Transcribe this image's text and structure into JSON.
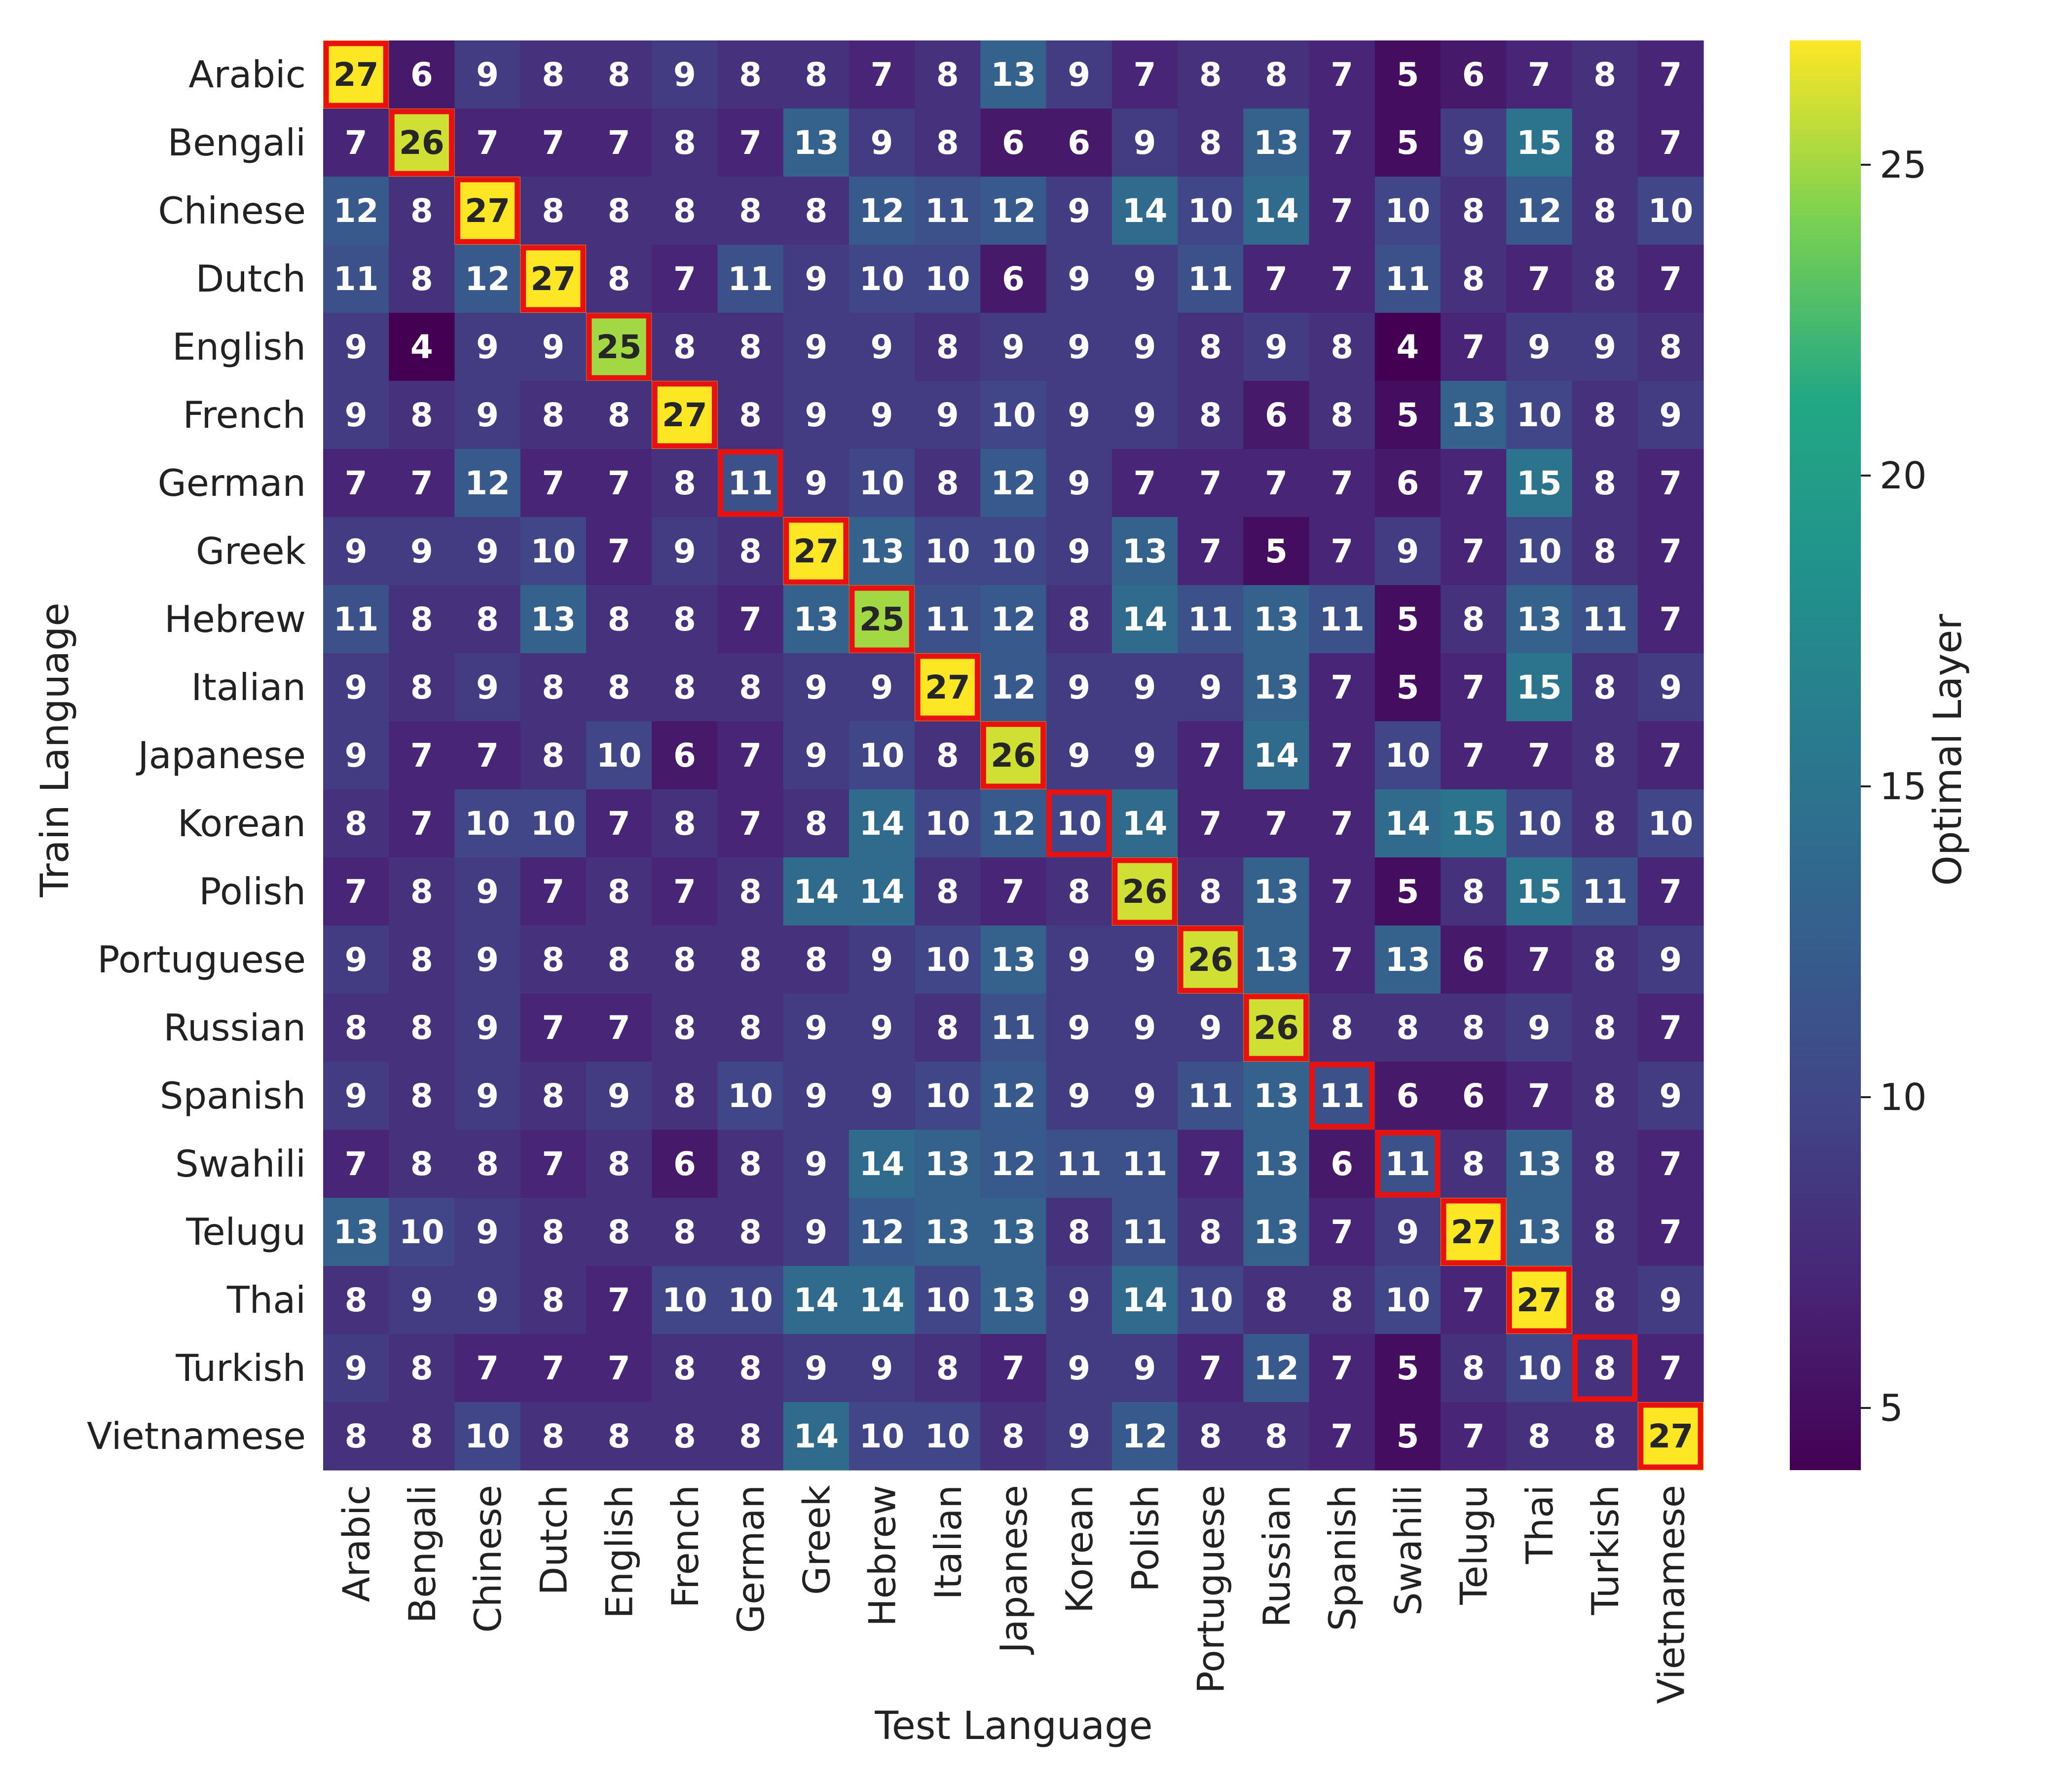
{
  "chart_data": {
    "type": "heatmap",
    "title": "",
    "xlabel": "Test Language",
    "ylabel": "Train Language",
    "colorbar_label": "Optimal Layer",
    "colormap": "viridis",
    "vmin": 4,
    "vmax": 27,
    "colorbar_ticks": [
      5,
      10,
      15,
      20,
      25
    ],
    "highlight": "diagonal",
    "highlight_color": "#e8110f",
    "x_categories": [
      "Arabic",
      "Bengali",
      "Chinese",
      "Dutch",
      "English",
      "French",
      "German",
      "Greek",
      "Hebrew",
      "Italian",
      "Japanese",
      "Korean",
      "Polish",
      "Portuguese",
      "Russian",
      "Spanish",
      "Swahili",
      "Telugu",
      "Thai",
      "Turkish",
      "Vietnamese"
    ],
    "y_categories": [
      "Arabic",
      "Bengali",
      "Chinese",
      "Dutch",
      "English",
      "French",
      "German",
      "Greek",
      "Hebrew",
      "Italian",
      "Japanese",
      "Korean",
      "Polish",
      "Portuguese",
      "Russian",
      "Spanish",
      "Swahili",
      "Telugu",
      "Thai",
      "Turkish",
      "Vietnamese"
    ],
    "values": [
      [
        27,
        6,
        9,
        8,
        8,
        9,
        8,
        8,
        7,
        8,
        13,
        9,
        7,
        8,
        8,
        7,
        5,
        6,
        7,
        8,
        7
      ],
      [
        7,
        26,
        7,
        7,
        7,
        8,
        7,
        13,
        9,
        8,
        6,
        6,
        9,
        8,
        13,
        7,
        5,
        9,
        15,
        8,
        7
      ],
      [
        12,
        8,
        27,
        8,
        8,
        8,
        8,
        8,
        12,
        11,
        12,
        9,
        14,
        10,
        14,
        7,
        10,
        8,
        12,
        8,
        10
      ],
      [
        11,
        8,
        12,
        27,
        8,
        7,
        11,
        9,
        10,
        10,
        6,
        9,
        9,
        11,
        7,
        7,
        11,
        8,
        7,
        8,
        7
      ],
      [
        9,
        4,
        9,
        9,
        25,
        8,
        8,
        9,
        9,
        8,
        9,
        9,
        9,
        8,
        9,
        8,
        4,
        7,
        9,
        9,
        8
      ],
      [
        9,
        8,
        9,
        8,
        8,
        27,
        8,
        9,
        9,
        9,
        10,
        9,
        9,
        8,
        6,
        8,
        5,
        13,
        10,
        8,
        9
      ],
      [
        7,
        7,
        12,
        7,
        7,
        8,
        11,
        9,
        10,
        8,
        12,
        9,
        7,
        7,
        7,
        7,
        6,
        7,
        15,
        8,
        7
      ],
      [
        9,
        9,
        9,
        10,
        7,
        9,
        8,
        27,
        13,
        10,
        10,
        9,
        13,
        7,
        5,
        7,
        9,
        7,
        10,
        8,
        7
      ],
      [
        11,
        8,
        8,
        13,
        8,
        8,
        7,
        13,
        25,
        11,
        12,
        8,
        14,
        11,
        13,
        11,
        5,
        8,
        13,
        11,
        7
      ],
      [
        9,
        8,
        9,
        8,
        8,
        8,
        8,
        9,
        9,
        27,
        12,
        9,
        9,
        9,
        13,
        7,
        5,
        7,
        15,
        8,
        9
      ],
      [
        9,
        7,
        7,
        8,
        10,
        6,
        7,
        9,
        10,
        8,
        26,
        9,
        9,
        7,
        14,
        7,
        10,
        7,
        7,
        8,
        7
      ],
      [
        8,
        7,
        10,
        10,
        7,
        8,
        7,
        8,
        14,
        10,
        12,
        10,
        14,
        7,
        7,
        7,
        14,
        15,
        10,
        8,
        10
      ],
      [
        7,
        8,
        9,
        7,
        8,
        7,
        8,
        14,
        14,
        8,
        7,
        8,
        26,
        8,
        13,
        7,
        5,
        8,
        15,
        11,
        7
      ],
      [
        9,
        8,
        9,
        8,
        8,
        8,
        8,
        8,
        9,
        10,
        13,
        9,
        9,
        26,
        13,
        7,
        13,
        6,
        7,
        8,
        9
      ],
      [
        8,
        8,
        9,
        7,
        7,
        8,
        8,
        9,
        9,
        8,
        11,
        9,
        9,
        9,
        26,
        8,
        8,
        8,
        9,
        8,
        7
      ],
      [
        9,
        8,
        9,
        8,
        9,
        8,
        10,
        9,
        9,
        10,
        12,
        9,
        9,
        11,
        13,
        11,
        6,
        6,
        7,
        8,
        9
      ],
      [
        7,
        8,
        8,
        7,
        8,
        6,
        8,
        9,
        14,
        13,
        12,
        11,
        11,
        7,
        13,
        6,
        11,
        8,
        13,
        8,
        7
      ],
      [
        13,
        10,
        9,
        8,
        8,
        8,
        8,
        9,
        12,
        13,
        13,
        8,
        11,
        8,
        13,
        7,
        9,
        27,
        13,
        8,
        7
      ],
      [
        8,
        9,
        9,
        8,
        7,
        10,
        10,
        14,
        14,
        10,
        13,
        9,
        14,
        10,
        8,
        8,
        10,
        7,
        27,
        8,
        9
      ],
      [
        9,
        8,
        7,
        7,
        7,
        8,
        8,
        9,
        9,
        8,
        7,
        9,
        9,
        7,
        12,
        7,
        5,
        8,
        10,
        8,
        7
      ],
      [
        8,
        8,
        10,
        8,
        8,
        8,
        8,
        14,
        10,
        10,
        8,
        9,
        12,
        8,
        8,
        7,
        5,
        7,
        8,
        8,
        27
      ]
    ]
  }
}
